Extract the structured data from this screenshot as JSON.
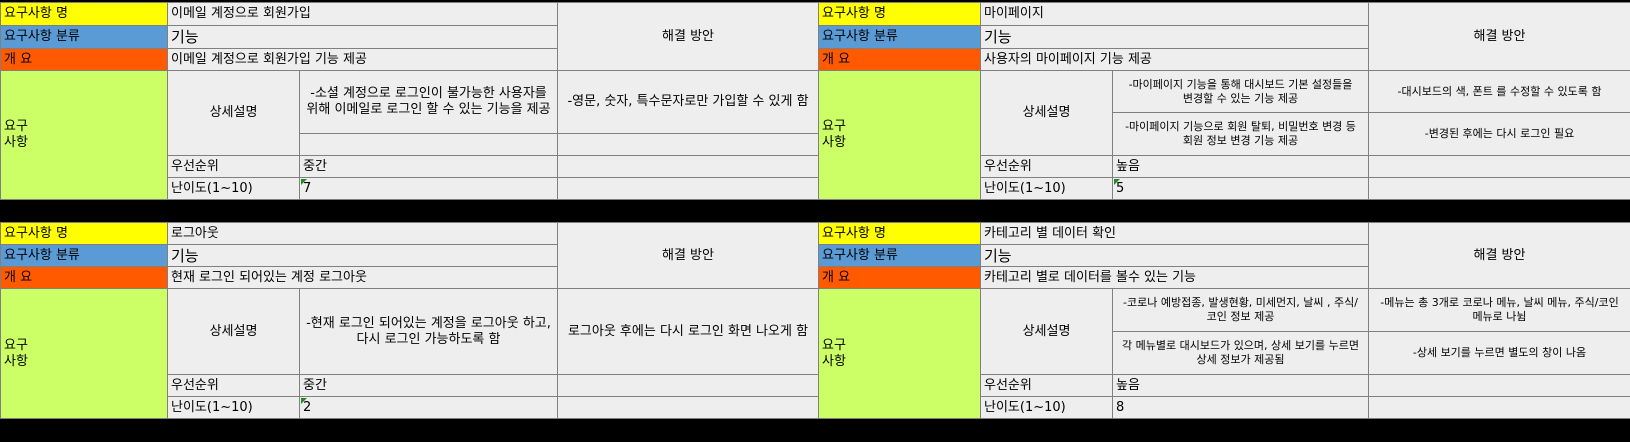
{
  "labels": {
    "req_name": "요구사항 명",
    "req_category": "요구사항 분류",
    "overview": "개 요",
    "requirements": "요구\n사항",
    "detail": "상세설명",
    "priority": "우선순위",
    "difficulty": "난이도(1~10)",
    "solution": "해결 방안"
  },
  "blocks": [
    {
      "name": "이메일 계정으로 회원가입",
      "category": "기능",
      "overview": "이메일 계정으로 회원가입 기능 제공",
      "details": [
        "-소셜 계정으로 로그인이 불가능한 사용자를 위해 이메일로 로그인 할 수 있는 기능을 제공",
        ""
      ],
      "solutions": [
        "-영문, 숫자, 특수문자로만 가입할 수 있게 함",
        ""
      ],
      "priority": "중간",
      "difficulty": "7"
    },
    {
      "name": "마이페이지",
      "category": "기능",
      "overview": "사용자의 마이페이지 기능 제공",
      "details": [
        "-마이페이지 기능을 통해 대시보드 기본 설정들을 변경할 수 있는 기능 제공",
        "-마이페이지 기능으로 회원 탈퇴, 비밀번호 변경 등 회원 정보 변경 기능 제공"
      ],
      "solutions": [
        "-대시보드의 색, 폰트 를 수정할 수 있도록 함",
        "-변경된 후에는 다시 로그인 필요"
      ],
      "priority": "높음",
      "difficulty": "5"
    },
    {
      "name": "로그아웃",
      "category": "기능",
      "overview": "현재 로그인 되어있는 계정 로그아웃",
      "details": [
        "-현재 로그인 되어있는 계정을 로그아웃 하고,다시 로그인 가능하도록 함"
      ],
      "solutions": [
        "로그아웃 후에는 다시 로그인 화면 나오게 함"
      ],
      "priority": "중간",
      "difficulty": "2"
    },
    {
      "name": "카테고리 별 데이터 확인",
      "category": "기능",
      "overview": "카테고리 별로 데이터를 볼수 있는 기능",
      "details": [
        "-코로나 예방접종, 발생현황, 미세먼지, 날씨 , 주식/코인 정보 제공",
        "각 메뉴별로 대시보드가 있으며, 상세 보기를 누르면 상세 정보가 제공됨"
      ],
      "solutions": [
        "-메뉴는 총 3개로 코로나 메뉴, 날씨 메뉴, 주식/코인 메뉴로 나뉨",
        "-상세 보기를 누르면 별도의 창이 나옴"
      ],
      "priority": "높음",
      "difficulty": "8"
    }
  ]
}
